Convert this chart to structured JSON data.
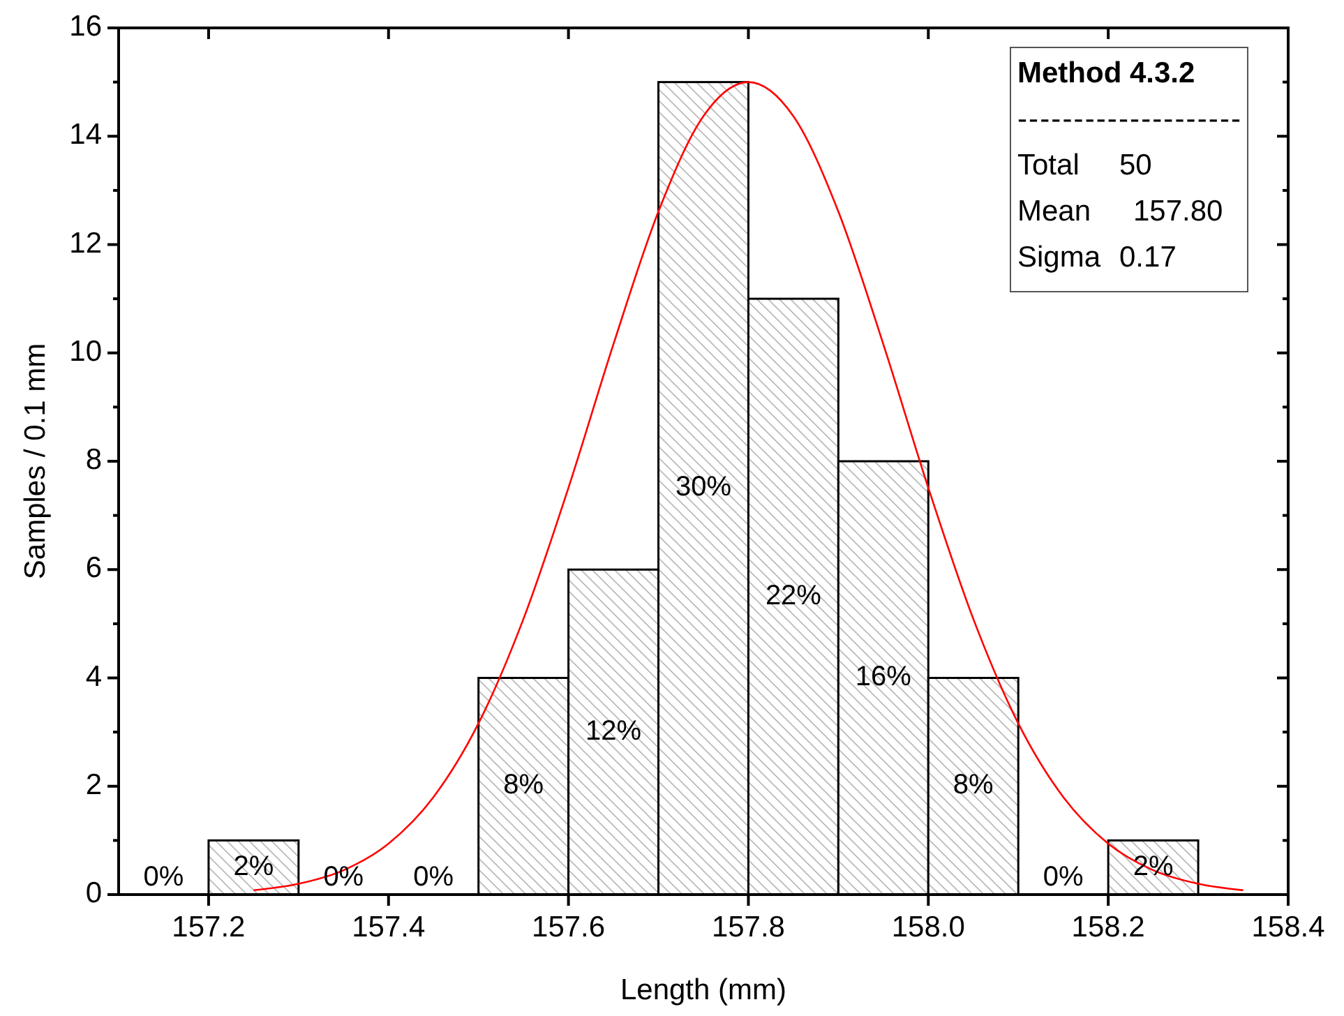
{
  "chart_data": {
    "type": "histogram",
    "xlabel": "Length (mm)",
    "ylabel": "Samples / 0.1 mm",
    "bins": [
      157.1,
      157.2,
      157.3,
      157.4,
      157.5,
      157.6,
      157.7,
      157.8,
      157.9,
      158.0,
      158.1,
      158.2,
      158.3
    ],
    "values": [
      0,
      1,
      0,
      0,
      4,
      6,
      15,
      11,
      8,
      4,
      0,
      1
    ],
    "color": "#000000",
    "series": [
      {
        "type": "line",
        "color": "#ff0000",
        "x": [
          157.25,
          157.3,
          157.35,
          157.4,
          157.45,
          157.5,
          157.55,
          157.6,
          157.65,
          157.7,
          157.75,
          157.8,
          157.85,
          157.9,
          157.95,
          158.0,
          158.05,
          158.1,
          158.15,
          158.2,
          158.25,
          158.3,
          158.35
        ],
        "values": [
          0.08,
          0.2,
          0.45,
          0.94,
          1.8,
          3.16,
          5.09,
          7.51,
          10.16,
          12.61,
          14.37,
          15,
          14.37,
          12.61,
          10.16,
          7.51,
          5.09,
          3.16,
          1.8,
          0.94,
          0.45,
          0.2,
          0.08
        ]
      }
    ],
    "annotations": [
      "Method 4.3.2",
      "--------------------",
      "Total 50",
      "Mean 157.80",
      "Sigma 0.17",
      "0%",
      "2%",
      "0%",
      "0%",
      "8%",
      "12%",
      "30%",
      "22%",
      "16%",
      "8%",
      "0%",
      "2%"
    ],
    "xlim": [
      157.1,
      158.4
    ],
    "xticks": [
      {
        "value": 157.2,
        "label": "157.2"
      },
      {
        "value": 157.4,
        "label": "157.4"
      },
      {
        "value": 157.6,
        "label": "157.6"
      },
      {
        "value": 157.8,
        "label": "157.8"
      },
      {
        "value": 158.0,
        "label": "158.0"
      },
      {
        "value": 158.2,
        "label": "158.2"
      },
      {
        "value": 158.4,
        "label": "158.4"
      }
    ],
    "ylim": [
      0,
      16
    ],
    "yticks": [
      0,
      {
        "value": 1,
        "label": null
      },
      2,
      {
        "value": 3,
        "label": null
      },
      4,
      {
        "value": 5,
        "label": null
      },
      6,
      {
        "value": 7,
        "label": null
      },
      8,
      {
        "value": 9,
        "label": null
      },
      10,
      {
        "value": 11,
        "label": null
      },
      12,
      {
        "value": 13,
        "label": null
      },
      14,
      {
        "value": 15,
        "label": null
      },
      16
    ],
    "grid": false
  }
}
